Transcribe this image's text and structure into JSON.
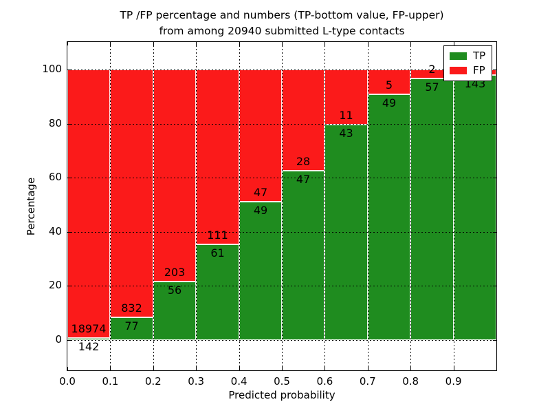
{
  "figure": {
    "title_line1": "TP /FP percentage and numbers (TP-bottom value, FP-upper)",
    "title_line2": "from among 20940 submitted L-type contacts"
  },
  "chart_data": {
    "type": "bar",
    "stacked": true,
    "title": "TP /FP percentage and numbers (TP-bottom value, FP-upper)\nfrom among 20940 submitted L-type contacts",
    "xlabel": "Predicted probability",
    "ylabel": "Percentage",
    "total_submitted_contacts": 20940,
    "x_tick_labels": [
      "0.0",
      "0.1",
      "0.2",
      "0.3",
      "0.4",
      "0.5",
      "0.6",
      "0.7",
      "0.8",
      "0.9"
    ],
    "y_tick_values": [
      0,
      20,
      40,
      60,
      80,
      100
    ],
    "xlim": [
      0.0,
      1.0
    ],
    "ylim": [
      -11,
      110
    ],
    "grid": true,
    "legend": {
      "position": "upper right",
      "entries": [
        {
          "label": "TP",
          "color": "#1f8c1f"
        },
        {
          "label": "FP",
          "color": "#fb1a1a"
        }
      ]
    },
    "bars_note": "Each bar normalized to 100%: TP share (green, bottom) and FP share (red, top). Counts annotated at boundary: TP below, FP above.",
    "bars": [
      {
        "bin": "0.0-0.1",
        "tp": 142,
        "fp": 18974
      },
      {
        "bin": "0.1-0.2",
        "tp": 77,
        "fp": 832
      },
      {
        "bin": "0.2-0.3",
        "tp": 56,
        "fp": 203
      },
      {
        "bin": "0.3-0.4",
        "tp": 61,
        "fp": 111
      },
      {
        "bin": "0.4-0.5",
        "tp": 49,
        "fp": 47
      },
      {
        "bin": "0.5-0.6",
        "tp": 47,
        "fp": 28
      },
      {
        "bin": "0.6-0.7",
        "tp": 43,
        "fp": 11
      },
      {
        "bin": "0.7-0.8",
        "tp": 49,
        "fp": 5
      },
      {
        "bin": "0.8-0.9",
        "tp": 57,
        "fp": 2
      },
      {
        "bin": "0.9-1.0",
        "tp": 143,
        "fp": 3,
        "fp_label_visible": false
      }
    ],
    "colors": {
      "tp": "#1f8c1f",
      "fp": "#fb1a1a",
      "grid": "#000000",
      "background": "#ffffff",
      "bar_edge": "#ffffff"
    }
  }
}
